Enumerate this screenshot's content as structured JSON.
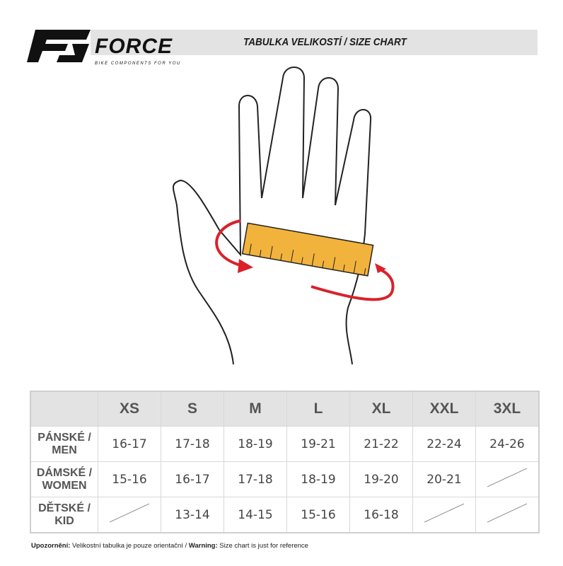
{
  "header": {
    "brand": "FORCE",
    "tagline": "BIKE COMPONENTS FOR YOU",
    "title": "TABULKA VELIKOSTÍ / SIZE CHART"
  },
  "table": {
    "sizes": [
      "XS",
      "S",
      "M",
      "L",
      "XL",
      "XXL",
      "3XL"
    ],
    "rows": [
      {
        "label1": "PÁNSKÉ /",
        "label2": "MEN",
        "values": [
          "16-17",
          "17-18",
          "18-19",
          "19-21",
          "21-22",
          "22-24",
          "24-26"
        ]
      },
      {
        "label1": "DÁMSKÉ /",
        "label2": "WOMEN",
        "values": [
          "15-16",
          "16-17",
          "17-18",
          "18-19",
          "19-20",
          "20-21",
          null
        ]
      },
      {
        "label1": "DĚTSKÉ /",
        "label2": "KID",
        "values": [
          null,
          "13-14",
          "14-15",
          "15-16",
          "16-18",
          null,
          null
        ]
      }
    ]
  },
  "footer": {
    "warn_cz_label": "Upozornění:",
    "warn_cz": " Velikostní tabulka je pouze orientační / ",
    "warn_en_label": "Warning:",
    "warn_en": " Size chart is just for reference"
  },
  "colors": {
    "accent": "#d9222a",
    "ruler": "#f2b33d"
  }
}
